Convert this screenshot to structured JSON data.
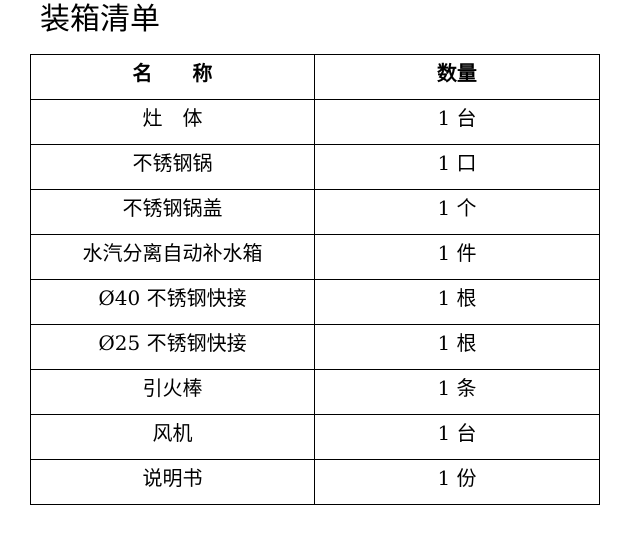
{
  "title": "装箱清单",
  "table": {
    "headers": [
      "名　　称",
      "数量"
    ],
    "rows": [
      [
        "灶　体",
        "1 台"
      ],
      [
        "不锈钢锅",
        "1 口"
      ],
      [
        "不锈钢锅盖",
        "1 个"
      ],
      [
        "水汽分离自动补水箱",
        "1 件"
      ],
      [
        "Ø40 不锈钢快接",
        "1 根"
      ],
      [
        "Ø25 不锈钢快接",
        "1 根"
      ],
      [
        "引火棒",
        "1 条"
      ],
      [
        "风机",
        "1 台"
      ],
      [
        "说明书",
        "1 份"
      ]
    ]
  }
}
